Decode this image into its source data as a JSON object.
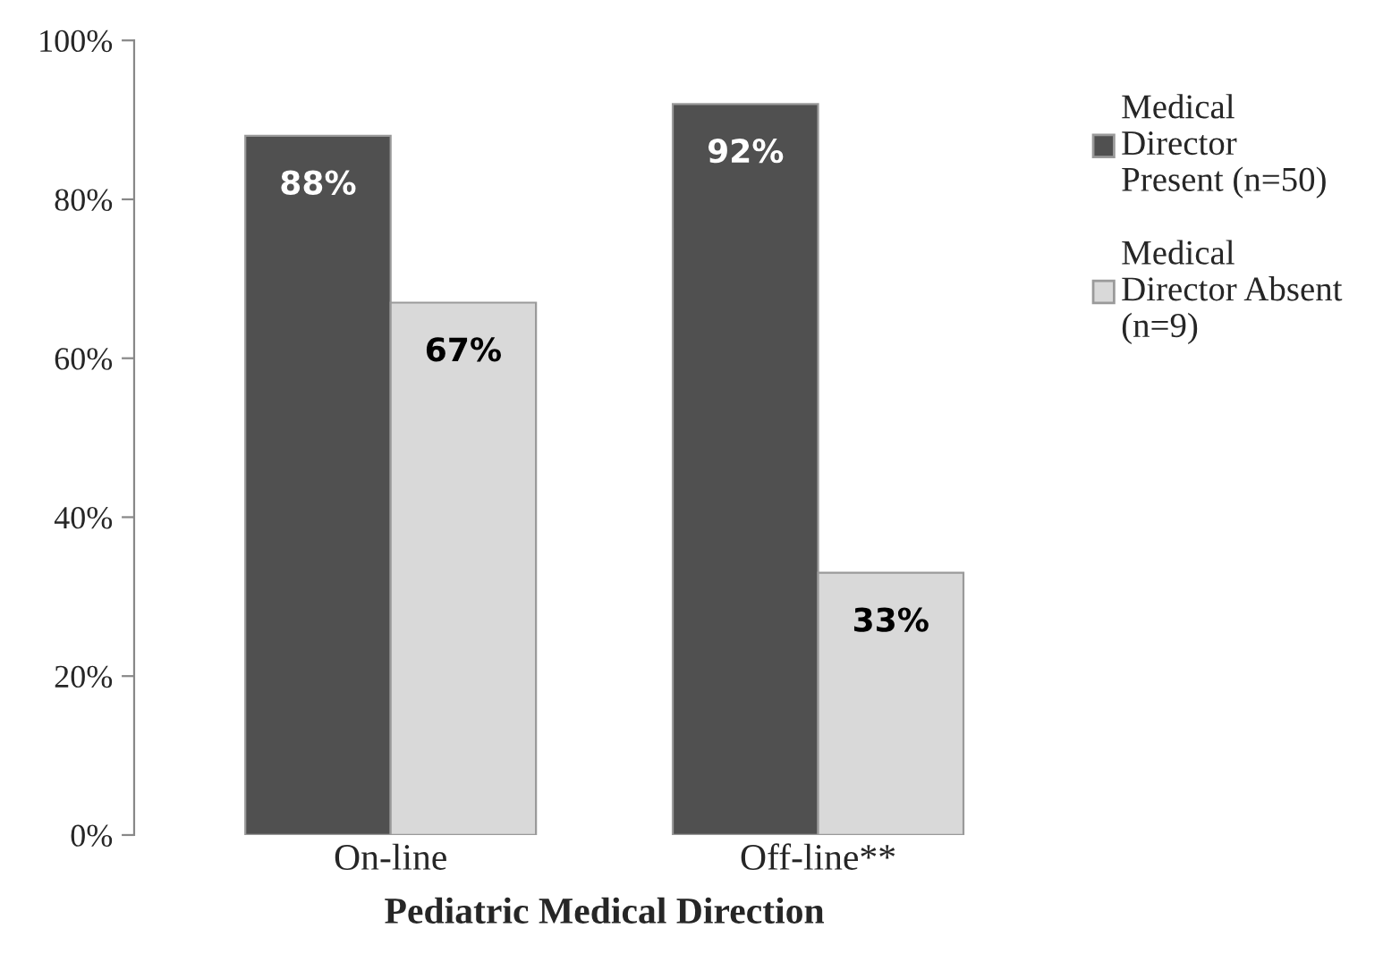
{
  "chart_data": {
    "type": "bar",
    "xlabel": "Pediatric Medical Direction",
    "categories": [
      "On-line",
      "Off-line**"
    ],
    "series": [
      {
        "name": "Medical\nDirector\nPresent (n=50)",
        "color": "#505050",
        "values": [
          88,
          92
        ],
        "value_labels": [
          "88%",
          "92%"
        ]
      },
      {
        "name": "Medical\nDirector Absent\n(n=9)",
        "color": "#d9d9d9",
        "values": [
          67,
          33
        ],
        "value_labels": [
          "67%",
          "33%"
        ]
      }
    ],
    "ylim": [
      0,
      100
    ],
    "yticks": [
      {
        "value": 0,
        "label": "0%"
      },
      {
        "value": 20,
        "label": "20%"
      },
      {
        "value": 40,
        "label": "40%"
      },
      {
        "value": 60,
        "label": "60%"
      },
      {
        "value": 80,
        "label": "80%"
      },
      {
        "value": 100,
        "label": "100%"
      }
    ],
    "legend": "right",
    "grid": false
  }
}
